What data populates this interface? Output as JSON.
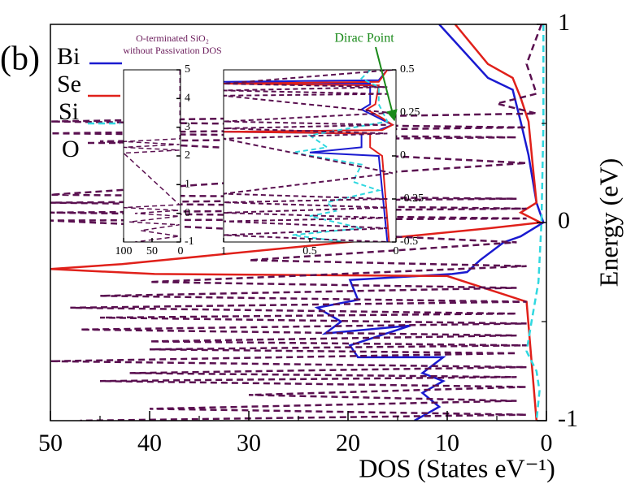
{
  "chart_data": [
    {
      "type": "line",
      "orientation": "horizontal",
      "panel_label": "(b)",
      "title": "O-terminated SiO₂",
      "subtitle": "without Passivation DOS",
      "title_color": "#6a1a5a",
      "annotation": "Dirac Point",
      "annotation_color": "#1a8a1a",
      "x_label": "DOS (States eV⁻¹)",
      "y_label": "Energy (eV)",
      "xlim": [
        50,
        0
      ],
      "xticks": [
        50,
        40,
        30,
        20,
        10,
        0
      ],
      "xminor_ticks": [
        45,
        35,
        25,
        15,
        5
      ],
      "ylim": [
        -1,
        1
      ],
      "yticks": [
        -1,
        0,
        1
      ],
      "yminor_ticks": [
        -0.5,
        0.5
      ],
      "series": [
        {
          "name": "Bi",
          "color": "#1a1ad0",
          "style": "solid",
          "energy": [
            1,
            0.73,
            0.67,
            0.51,
            0.34,
            0.1,
            0,
            -0.07,
            -0.1,
            -0.19,
            -0.25,
            -0.26,
            -0.29,
            -0.39,
            -0.43,
            -0.5,
            -0.56,
            -0.52,
            -0.62,
            -0.68,
            -0.68,
            -0.76,
            -0.8,
            -0.86,
            -0.93,
            -1
          ],
          "values": [
            10.8,
            5.9,
            3.4,
            2.6,
            1.8,
            1.0,
            0.3,
            2.6,
            4.3,
            6.7,
            8,
            9.5,
            19.8,
            19,
            23.1,
            20.7,
            22.3,
            13.7,
            19.8,
            19,
            10.4,
            12.5,
            10.4,
            12.5,
            10.8,
            13.3
          ]
        },
        {
          "name": "Se",
          "color": "#e0201a",
          "style": "solid",
          "energy": [
            1,
            0.8,
            0.73,
            0.63,
            0.51,
            0.3,
            0.1,
            0.05,
            0,
            -0.03,
            -0.11,
            -0.21,
            -0.235,
            -0.26,
            -0.27,
            -0.4,
            -1
          ],
          "values": [
            9.2,
            5.9,
            3.4,
            2.6,
            1.8,
            1.4,
            1.0,
            2.6,
            0.6,
            5.9,
            22.3,
            42.8,
            50,
            39.5,
            10,
            2,
            1
          ]
        },
        {
          "name": "Si",
          "color": "#30d8e0",
          "style": "dashed",
          "energy": [
            1,
            0.5,
            0,
            -0.3,
            -0.5,
            -0.65,
            -0.75,
            -0.85,
            -1
          ],
          "values": [
            0.3,
            0.3,
            0.5,
            0.8,
            1.5,
            2,
            1,
            0.7,
            1
          ]
        },
        {
          "name": "O",
          "color": "#5a1050",
          "style": "dashed",
          "energy": [
            1,
            0.8,
            0.65,
            0.6,
            0.55,
            0.51,
            0.48,
            0.45,
            0.43,
            0.41,
            0.3,
            0.14,
            0.12,
            0.1,
            0.07,
            0.05,
            0.02,
            0.01,
            -0.1,
            -0.19,
            -0.22,
            -0.3,
            -0.33,
            -0.37,
            -0.4,
            -0.43,
            -0.46,
            -0.48,
            -0.51,
            -0.54,
            -0.57,
            -0.6,
            -0.62,
            -0.64,
            -0.66,
            -0.7,
            -0.73,
            -0.76,
            -0.78,
            -0.8,
            -0.83,
            -0.87,
            -0.9,
            -0.94,
            -0.97,
            -1
          ],
          "values": [
            0.5,
            2,
            1,
            5,
            1,
            50,
            2,
            50,
            3,
            45,
            2,
            50,
            3,
            50,
            2,
            50,
            2,
            50,
            3,
            30,
            2,
            40,
            3,
            45,
            2,
            48,
            3,
            45,
            2,
            47,
            3,
            40,
            2,
            40,
            3,
            50,
            2,
            42,
            3,
            45,
            2,
            30,
            3,
            40,
            2,
            47
          ]
        }
      ]
    },
    {
      "type": "line",
      "orientation": "horizontal",
      "xlim": [
        100,
        0
      ],
      "xticks": [
        100,
        50,
        0
      ],
      "ylim": [
        -1,
        5
      ],
      "yticks": [
        -1,
        0,
        1,
        2,
        3,
        4,
        5
      ],
      "series": [
        {
          "name": "O",
          "color": "#5a1050",
          "style": "dashed",
          "energy": [
            5,
            2.6,
            2.5,
            2.4,
            2.3,
            2.2,
            2.1,
            0.3,
            0.2,
            0.1,
            0,
            -0.1,
            -0.3,
            -0.4,
            -0.6,
            -0.8,
            -1
          ],
          "values": [
            1,
            1,
            100,
            2,
            100,
            2,
            100,
            2,
            100,
            3,
            80,
            2,
            90,
            2,
            70,
            2,
            80
          ]
        }
      ]
    },
    {
      "type": "line",
      "orientation": "horizontal",
      "xlim": [
        1,
        0
      ],
      "xticks": [
        1,
        0.5,
        0
      ],
      "ylim": [
        -0.5,
        0.5
      ],
      "yticks": [
        -0.5,
        -0.25,
        0,
        0.25,
        0.5
      ],
      "series": [
        {
          "name": "Bi",
          "color": "#1a1ad0",
          "style": "solid",
          "energy": [
            0.5,
            0.44,
            0.43,
            0.42,
            0.3,
            0.27,
            0.22,
            0.18,
            0.15,
            0.14,
            0.13,
            0.05,
            0.02,
            0,
            -0.5
          ],
          "values": [
            0.05,
            0.1,
            1,
            0.15,
            0.15,
            0.2,
            0.1,
            0.02,
            0.1,
            1,
            0.2,
            0.2,
            0.5,
            0.1,
            0.05
          ]
        },
        {
          "name": "Se",
          "color": "#e0201a",
          "style": "solid",
          "energy": [
            0.5,
            0.43,
            0.42,
            0.41,
            0.3,
            0.27,
            0.22,
            0.18,
            0.15,
            0.14,
            0.13,
            0.05,
            0,
            -0.5
          ],
          "values": [
            0.05,
            0.1,
            1,
            0.1,
            0.12,
            0.17,
            0.08,
            0.02,
            0.08,
            1,
            0.15,
            0.15,
            0.08,
            0.04
          ]
        },
        {
          "name": "Si",
          "color": "#30d8e0",
          "style": "dashed",
          "energy": [
            0.5,
            0.45,
            0.4,
            0.3,
            0.2,
            0.12,
            0.05,
            0.02,
            -0.05,
            -0.15,
            -0.2,
            -0.27,
            -0.32,
            -0.35,
            -0.42,
            -0.46,
            -0.5
          ],
          "values": [
            0.15,
            0.2,
            0.1,
            0.1,
            0.05,
            0.5,
            0.4,
            0.6,
            0.2,
            0.25,
            0.1,
            0.4,
            0.35,
            0.5,
            0.2,
            0.6,
            0.3
          ]
        },
        {
          "name": "O",
          "color": "#5a1050",
          "style": "dashed",
          "energy": [
            0.5,
            0.42,
            0.4,
            0.38,
            0.36,
            0.35,
            0.25,
            0.2,
            0.18,
            0.16,
            0.13,
            0.1,
            -0.1,
            -0.22,
            -0.25,
            -0.27,
            -0.3,
            -0.33,
            -0.36,
            -0.38,
            -0.42,
            -0.46,
            -0.5
          ],
          "values": [
            0.02,
            1,
            0.05,
            1,
            0.05,
            1,
            0.03,
            1,
            0.05,
            1,
            0.05,
            1,
            0.02,
            1,
            0.05,
            1,
            0.05,
            1,
            0.05,
            1,
            0.05,
            1,
            0.05
          ]
        }
      ]
    }
  ]
}
